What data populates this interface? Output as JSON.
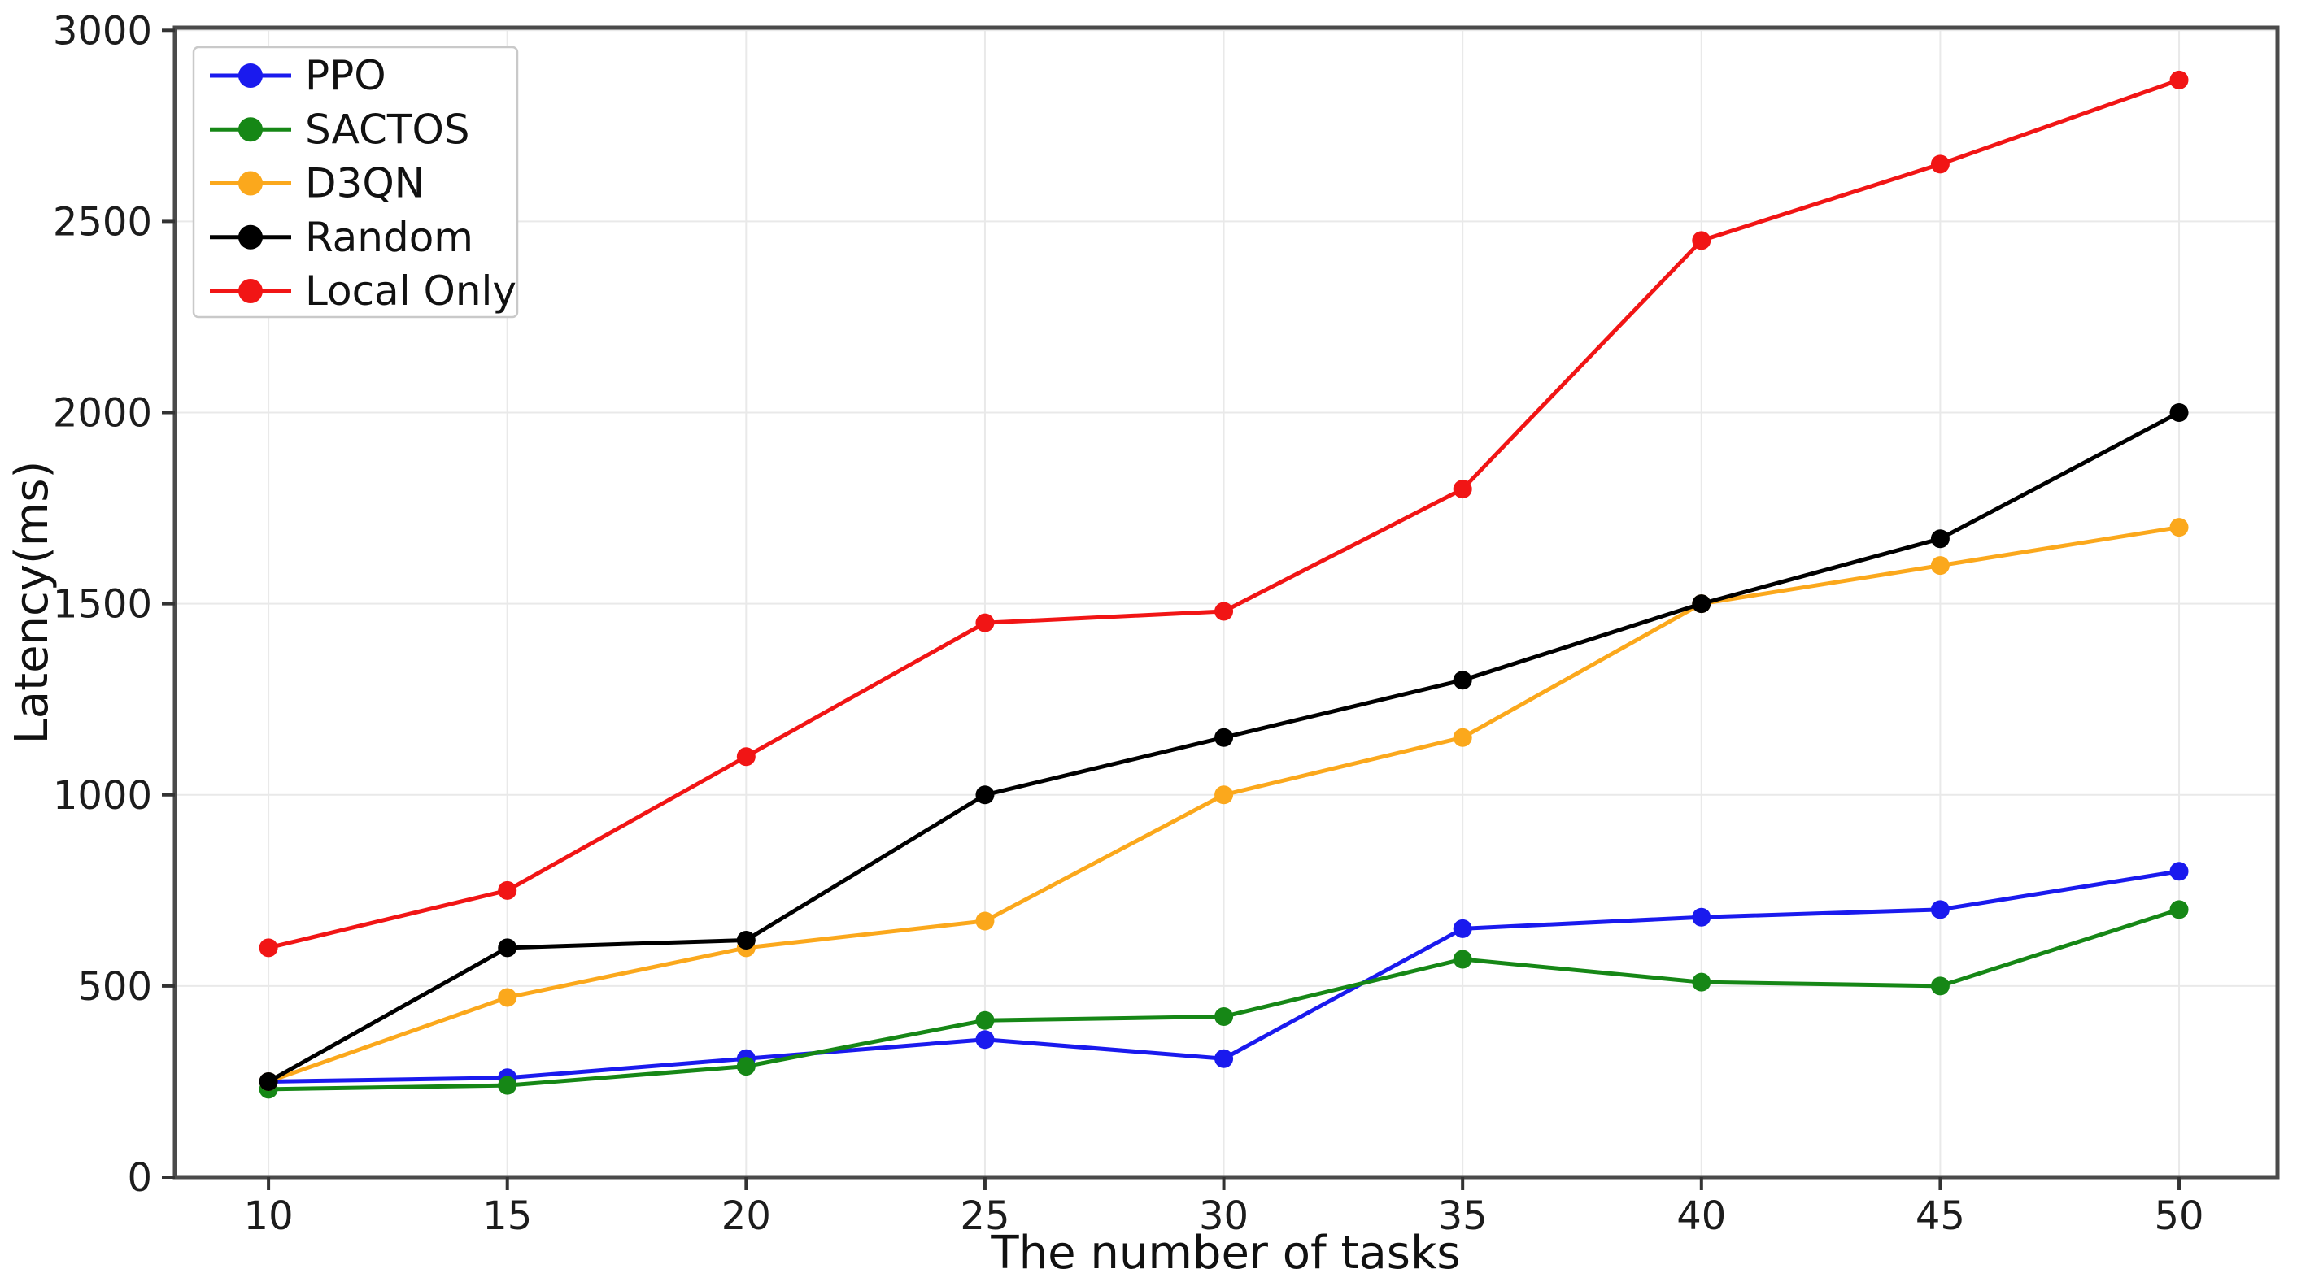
{
  "chart_data": {
    "type": "line",
    "title": "",
    "xlabel": "The number of tasks",
    "ylabel": "Latency(ms)",
    "x": [
      10,
      15,
      20,
      25,
      30,
      35,
      40,
      45,
      50
    ],
    "xticks": [
      10,
      15,
      20,
      25,
      30,
      35,
      40,
      45,
      50
    ],
    "yticks": [
      0,
      500,
      1000,
      1500,
      2000,
      2500,
      3000
    ],
    "xlim": [
      8.04,
      52.06
    ],
    "ylim": [
      0,
      3007
    ],
    "grid": true,
    "legend_position": "upper-left",
    "series": [
      {
        "name": "PPO",
        "color": "#1a1aee",
        "values": [
          250,
          260,
          310,
          360,
          310,
          650,
          680,
          700,
          800
        ]
      },
      {
        "name": "SACTOS",
        "color": "#168716",
        "values": [
          230,
          240,
          290,
          410,
          420,
          570,
          510,
          500,
          700
        ]
      },
      {
        "name": "D3QN",
        "color": "#fba81c",
        "values": [
          250,
          470,
          600,
          670,
          1000,
          1150,
          1500,
          1600,
          1700
        ]
      },
      {
        "name": "Random",
        "color": "#000000",
        "values": [
          250,
          600,
          620,
          1000,
          1150,
          1300,
          1500,
          1670,
          2000
        ]
      },
      {
        "name": "Local Only",
        "color": "#f11515",
        "values": [
          600,
          750,
          1100,
          1450,
          1480,
          1800,
          2450,
          2650,
          2870
        ]
      }
    ]
  },
  "colors": {
    "background": "#ffffff",
    "grid": "#e9e9e9",
    "spine": "#4a4a4a",
    "tick": "#333333",
    "legend_border": "#c9c9c9",
    "legend_background": "#ffffff"
  }
}
